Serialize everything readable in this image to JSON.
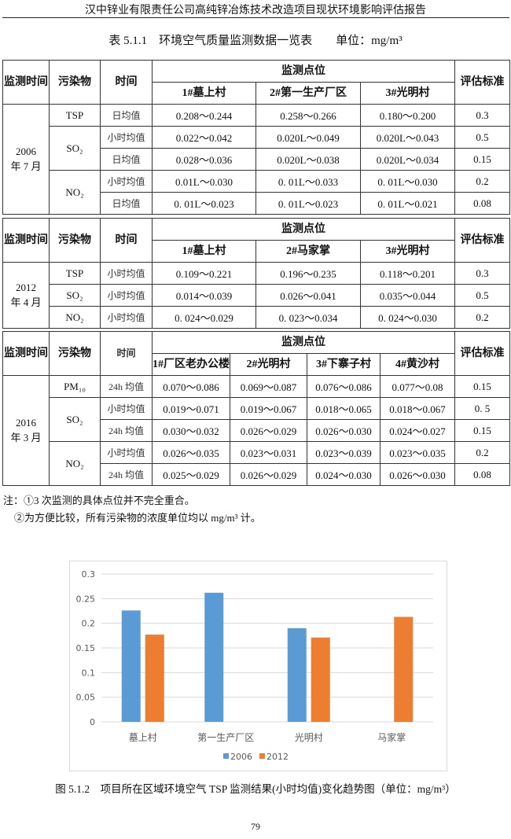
{
  "header": "汉中锌业有限责任公司高纯锌冶炼技术改造项目现状环境影响评估报告",
  "table_title": "表 5.1.1　环境空气质量监测数据一览表　　单位：mg/m³",
  "labels": {
    "time": "监测时间",
    "pollutant": "污染物",
    "period": "时间",
    "points": "监测点位",
    "standard": "评估标准"
  },
  "sections": [
    {
      "date": "2006 年 7 月",
      "sites": [
        "1#墓上村",
        "2#第一生产厂区",
        "3#光明村"
      ],
      "groups": [
        {
          "pollutant": "TSP",
          "rows": [
            {
              "period": "日均值",
              "values": [
                "0.208～0.244",
                "0.258～0.266",
                "0.180～0.200"
              ],
              "standard": "0.3"
            }
          ]
        },
        {
          "pollutant": "SO₂",
          "rows": [
            {
              "period": "小时均值",
              "values": [
                "0.022～0.042",
                "0.020L～0.049",
                "0.020L～0.043"
              ],
              "standard": "0.5"
            },
            {
              "period": "日均值",
              "values": [
                "0.028～0.036",
                "0.020L～0.038",
                "0.020L～0.034"
              ],
              "standard": "0.15"
            }
          ]
        },
        {
          "pollutant": "NO₂",
          "rows": [
            {
              "period": "小时均值",
              "values": [
                "0.01L～0.030",
                "0. 01L～0.033",
                "0. 01L～0.030"
              ],
              "standard": "0.2"
            },
            {
              "period": "日均值",
              "values": [
                "0. 01L～0.023",
                "0. 01L～0.023",
                "0. 01L～0.021"
              ],
              "standard": "0.08"
            }
          ]
        }
      ]
    },
    {
      "date": "2012 年 4 月",
      "sites": [
        "1#墓上村",
        "2#马家掌",
        "3#光明村"
      ],
      "groups": [
        {
          "pollutant": "TSP",
          "rows": [
            {
              "period": "小时均值",
              "values": [
                "0.109～0.221",
                "0.196～0.235",
                "0.118～0.201"
              ],
              "standard": "0.3"
            }
          ]
        },
        {
          "pollutant": "SO₂",
          "rows": [
            {
              "period": "小时均值",
              "values": [
                "0.014～0.039",
                "0.026～0.041",
                "0.035～0.044"
              ],
              "standard": "0.5"
            }
          ]
        },
        {
          "pollutant": "NO₂",
          "rows": [
            {
              "period": "小时均值",
              "values": [
                "0. 024～0.029",
                "0. 023～0.034",
                "0. 024～0.030"
              ],
              "standard": "0.2"
            }
          ]
        }
      ]
    },
    {
      "date": "2016 年 3 月",
      "sites": [
        "1#厂区老办公楼",
        "2#光明村",
        "3#下寨子村",
        "4#黄沙村"
      ],
      "groups": [
        {
          "pollutant": "PM₁₀",
          "rows": [
            {
              "period": "24h 均值",
              "values": [
                "0.070～0.086",
                "0.069～0.087",
                "0.076～0.086",
                "0.077～0.08"
              ],
              "standard": "0.15"
            }
          ]
        },
        {
          "pollutant": "SO₂",
          "rows": [
            {
              "period": "小时均值",
              "values": [
                "0.019～0.071",
                "0.019～0.067",
                "0.018～0.065",
                "0.018～0.067"
              ],
              "standard": "0. 5"
            },
            {
              "period": "24h 均值",
              "values": [
                "0.030～0.032",
                "0.026～0.029",
                "0.026～0.030",
                "0.024～0.027"
              ],
              "standard": "0.15"
            }
          ]
        },
        {
          "pollutant": "NO₂",
          "rows": [
            {
              "period": "小时均值",
              "values": [
                "0.026～0.035",
                "0.023～0.031",
                "0.023～0.039",
                "0.023～0.035"
              ],
              "standard": "0.2"
            },
            {
              "period": "24h 均值",
              "values": [
                "0.025～0.029",
                "0.026～0.029",
                "0.024～0.030",
                "0.026～0.030"
              ],
              "standard": "0.08"
            }
          ]
        }
      ]
    }
  ],
  "notes": [
    "注：①3 次监测的具体点位并不完全重合。",
    "②为方便比较，所有污染物的浓度单位均以 mg/m³ 计。"
  ],
  "chart_data": {
    "type": "bar",
    "categories": [
      "墓上村",
      "第一生产厂区",
      "光明村",
      "马家掌"
    ],
    "series": [
      {
        "name": "2006",
        "values": [
          0.226,
          0.262,
          0.19,
          null
        ],
        "color": "#5b9bd5"
      },
      {
        "name": "2012",
        "values": [
          0.177,
          null,
          0.171,
          0.213
        ],
        "color": "#ed7d31"
      }
    ],
    "ylim": [
      0,
      0.3
    ],
    "yticks": [
      "0",
      "0.05",
      "0.1",
      "0.15",
      "0.2",
      "0.25",
      "0.3"
    ],
    "grid": true,
    "legend": "bottom"
  },
  "caption": "图 5.1.2　项目所在区域环境空气 TSP 监测结果(小时均值)变化趋势图（单位：mg/m³）",
  "page_number": "79"
}
